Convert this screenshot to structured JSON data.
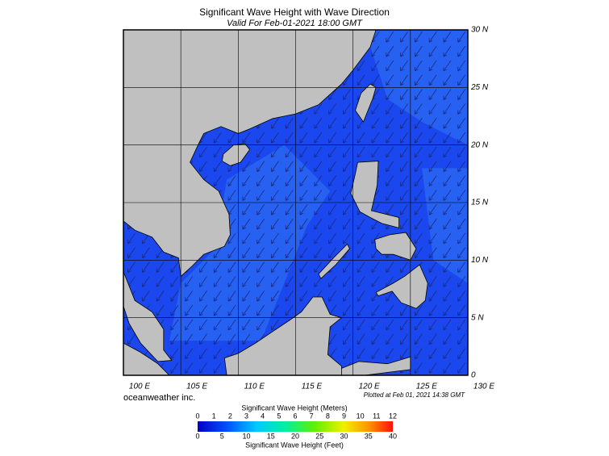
{
  "title": "Significant Wave Height with Wave Direction",
  "subtitle": "Valid For Feb-01-2021 18:00 GMT",
  "map": {
    "lat_labels": [
      "30 N",
      "25 N",
      "20 N",
      "15 N",
      "10 N",
      "5 N",
      "0"
    ],
    "lon_labels": [
      "100 E",
      "105 E",
      "110 E",
      "115 E",
      "120 E",
      "125 E",
      "130 E"
    ]
  },
  "credit": "oceanweather inc.",
  "plotted": "Plotted at Feb 01, 2021 14:38 GMT",
  "colorbar": {
    "title_top": "Significant Wave Height (Meters)",
    "meters": [
      "0",
      "1",
      "2",
      "3",
      "4",
      "5",
      "6",
      "7",
      "8",
      "9",
      "10",
      "11",
      "12"
    ],
    "feet": [
      "0",
      "5",
      "10",
      "15",
      "20",
      "25",
      "30",
      "35",
      "40"
    ],
    "title_bottom": "Significant Wave Height (Feet)"
  }
}
